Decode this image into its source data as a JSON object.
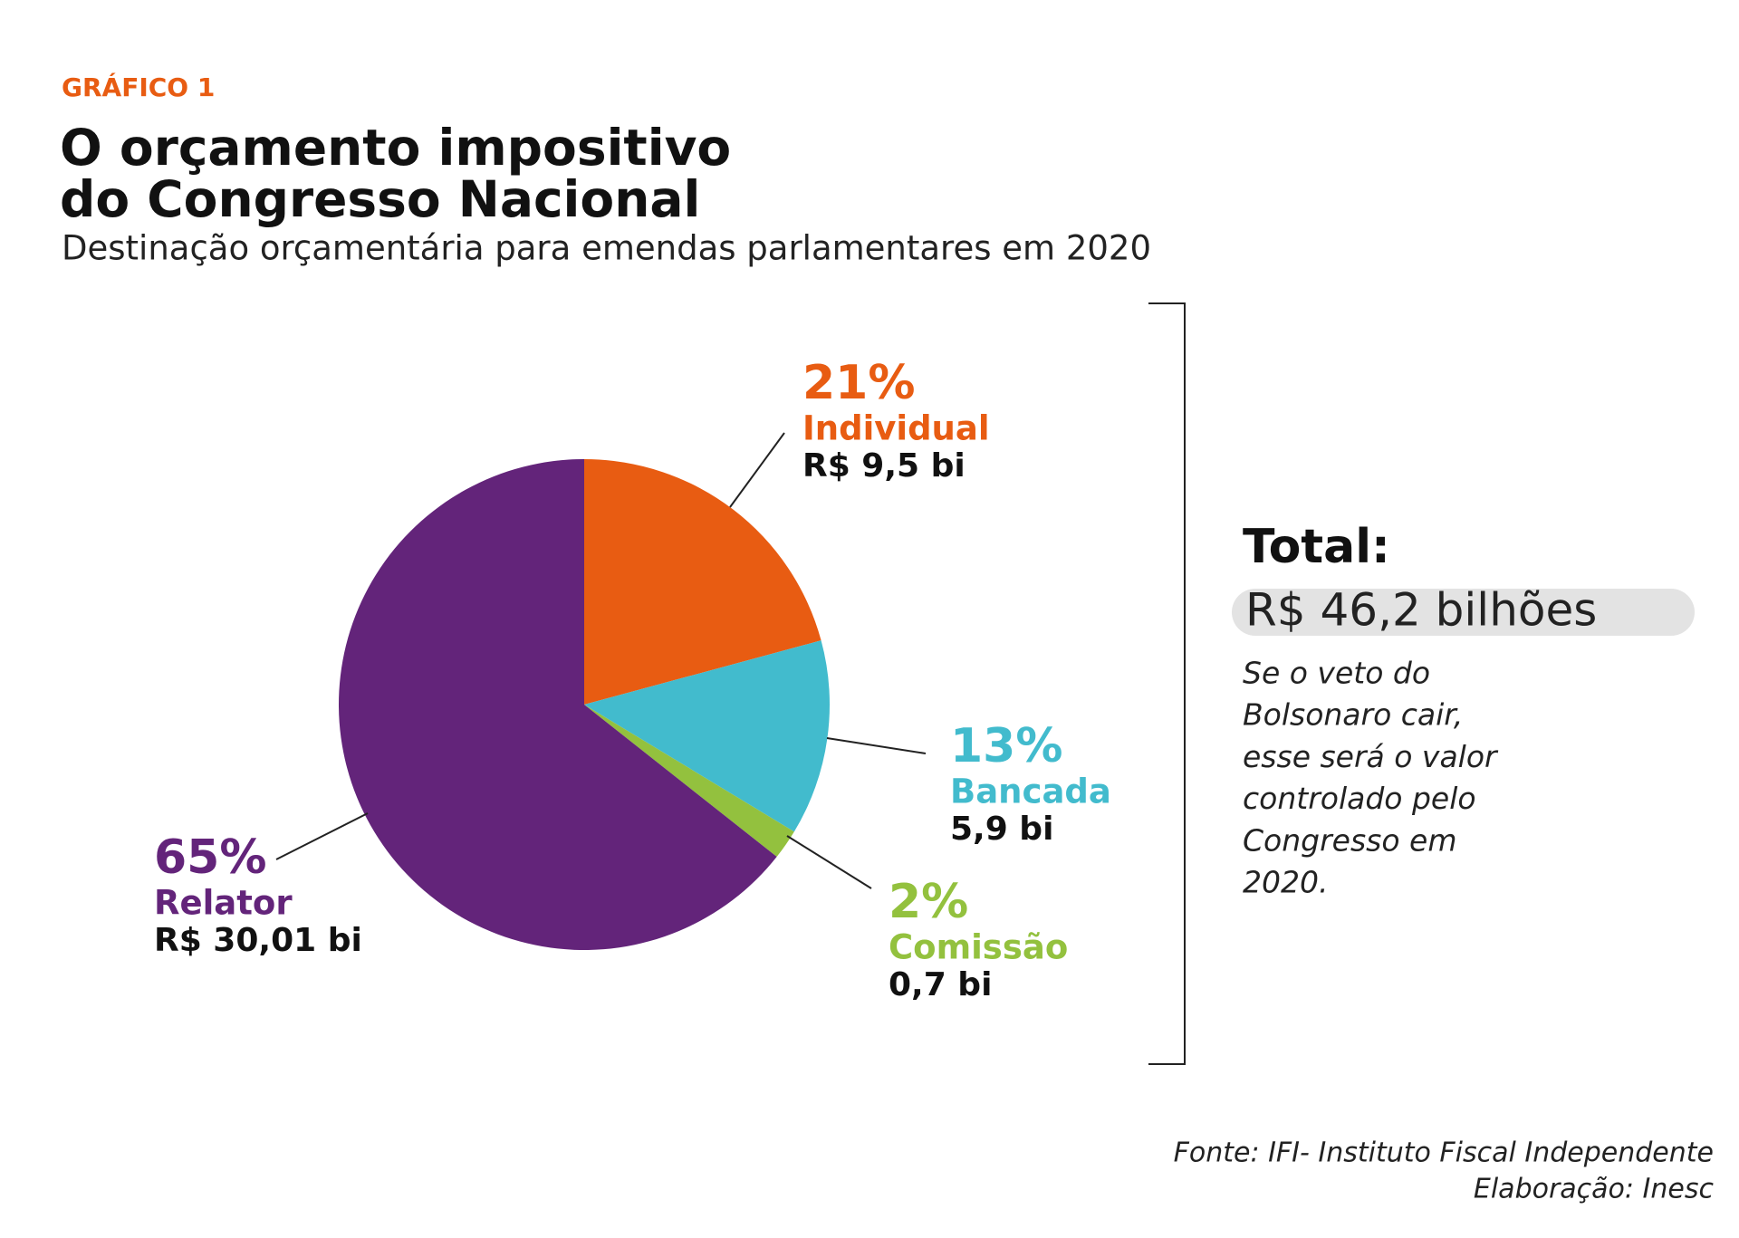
{
  "header": {
    "label": "GRÁFICO 1",
    "title_lines": [
      "O orçamento impositivo",
      "do Congresso Nacional"
    ],
    "subtitle": "Destinação orçamentária para emendas parlamentares em 2020"
  },
  "chart_data": {
    "type": "pie",
    "categories": [
      "Individual",
      "Bancada",
      "Comissão",
      "Relator"
    ],
    "values": [
      21,
      13,
      2,
      65
    ],
    "value_labels": [
      "21%",
      "13%",
      "2%",
      "65%"
    ],
    "amount_labels": [
      "R$ 9,5 bi",
      "5,9 bi",
      "0,7 bi",
      "R$ 30,01 bi"
    ],
    "colors": [
      "#e85c12",
      "#42bbcd",
      "#93c13e",
      "#63247a"
    ]
  },
  "total": {
    "label": "Total:",
    "value": "R$ 46,2 bilhões",
    "note_lines": [
      "Se o veto do",
      "Bolsonaro cair,",
      "esse será o valor",
      "controlado pelo",
      "Congresso em",
      "2020."
    ]
  },
  "footer": {
    "source": "Fonte: IFI- Instituto Fiscal Independente",
    "credit": "Elaboração: Inesc"
  }
}
